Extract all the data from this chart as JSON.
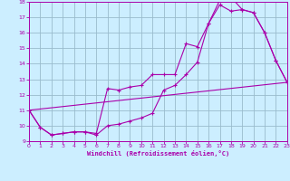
{
  "xlabel": "Windchill (Refroidissement éolien,°C)",
  "xlim": [
    0,
    23
  ],
  "ylim": [
    9,
    18
  ],
  "xticks": [
    0,
    1,
    2,
    3,
    4,
    5,
    6,
    7,
    8,
    9,
    10,
    11,
    12,
    13,
    14,
    15,
    16,
    17,
    18,
    19,
    20,
    21,
    22,
    23
  ],
  "yticks": [
    9,
    10,
    11,
    12,
    13,
    14,
    15,
    16,
    17,
    18
  ],
  "line_color": "#aa00aa",
  "bg_color": "#cceeff",
  "grid_color": "#99bbcc",
  "line1_x": [
    0,
    1,
    2,
    3,
    4,
    5,
    6,
    7,
    8,
    9,
    10,
    11,
    12,
    13,
    14,
    15,
    16,
    17,
    18,
    19,
    20,
    21,
    22,
    23
  ],
  "line1_y": [
    11.0,
    9.9,
    9.4,
    9.5,
    9.6,
    9.6,
    9.5,
    12.4,
    12.3,
    12.5,
    12.6,
    13.3,
    13.3,
    13.3,
    15.3,
    15.1,
    16.6,
    17.8,
    17.4,
    17.5,
    17.3,
    16.0,
    14.2,
    12.8
  ],
  "line2_x": [
    0,
    1,
    2,
    3,
    4,
    5,
    6,
    7,
    8,
    9,
    10,
    11,
    12,
    13,
    14,
    15,
    16,
    17,
    18,
    19,
    20,
    21,
    22,
    23
  ],
  "line2_y": [
    11.0,
    9.9,
    9.4,
    9.5,
    9.6,
    9.6,
    9.4,
    10.0,
    10.1,
    10.3,
    10.5,
    10.8,
    12.3,
    12.6,
    13.3,
    14.1,
    16.6,
    18.1,
    18.3,
    17.5,
    17.3,
    16.0,
    14.2,
    12.8
  ],
  "line3_x": [
    0,
    23
  ],
  "line3_y": [
    11.0,
    12.8
  ]
}
